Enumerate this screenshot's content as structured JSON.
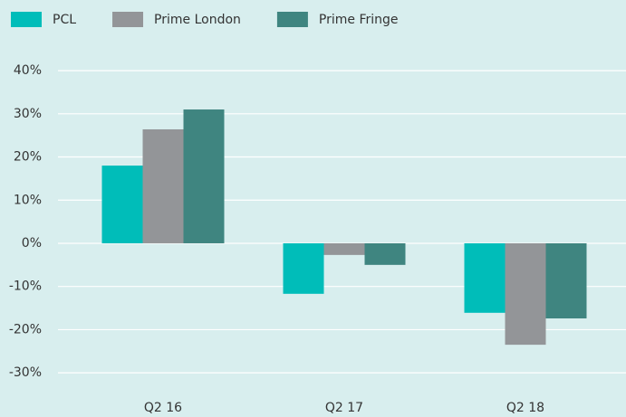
{
  "chart_data": {
    "type": "bar",
    "categories": [
      "Q2 16",
      "Q2 17",
      "Q2 18"
    ],
    "series": [
      {
        "name": "PCL",
        "color": "#00bdb9",
        "values": [
          18.0,
          -11.7,
          -16.1
        ]
      },
      {
        "name": "Prime London",
        "color": "#939598",
        "values": [
          26.4,
          -2.7,
          -23.5
        ]
      },
      {
        "name": "Prime Fringe",
        "color": "#3f8580",
        "values": [
          31.0,
          -5.0,
          -17.4
        ]
      }
    ],
    "ylim": [
      -35,
      44
    ],
    "yticks": [
      {
        "value": -30,
        "label": "-30%"
      },
      {
        "value": -20,
        "label": "-20%"
      },
      {
        "value": -10,
        "label": "-10%"
      },
      {
        "value": 0,
        "label": "0%"
      },
      {
        "value": 10,
        "label": "10%"
      },
      {
        "value": 20,
        "label": "20%"
      },
      {
        "value": 30,
        "label": "30%"
      },
      {
        "value": 40,
        "label": "40%"
      }
    ],
    "grid": true,
    "legend": "top"
  }
}
